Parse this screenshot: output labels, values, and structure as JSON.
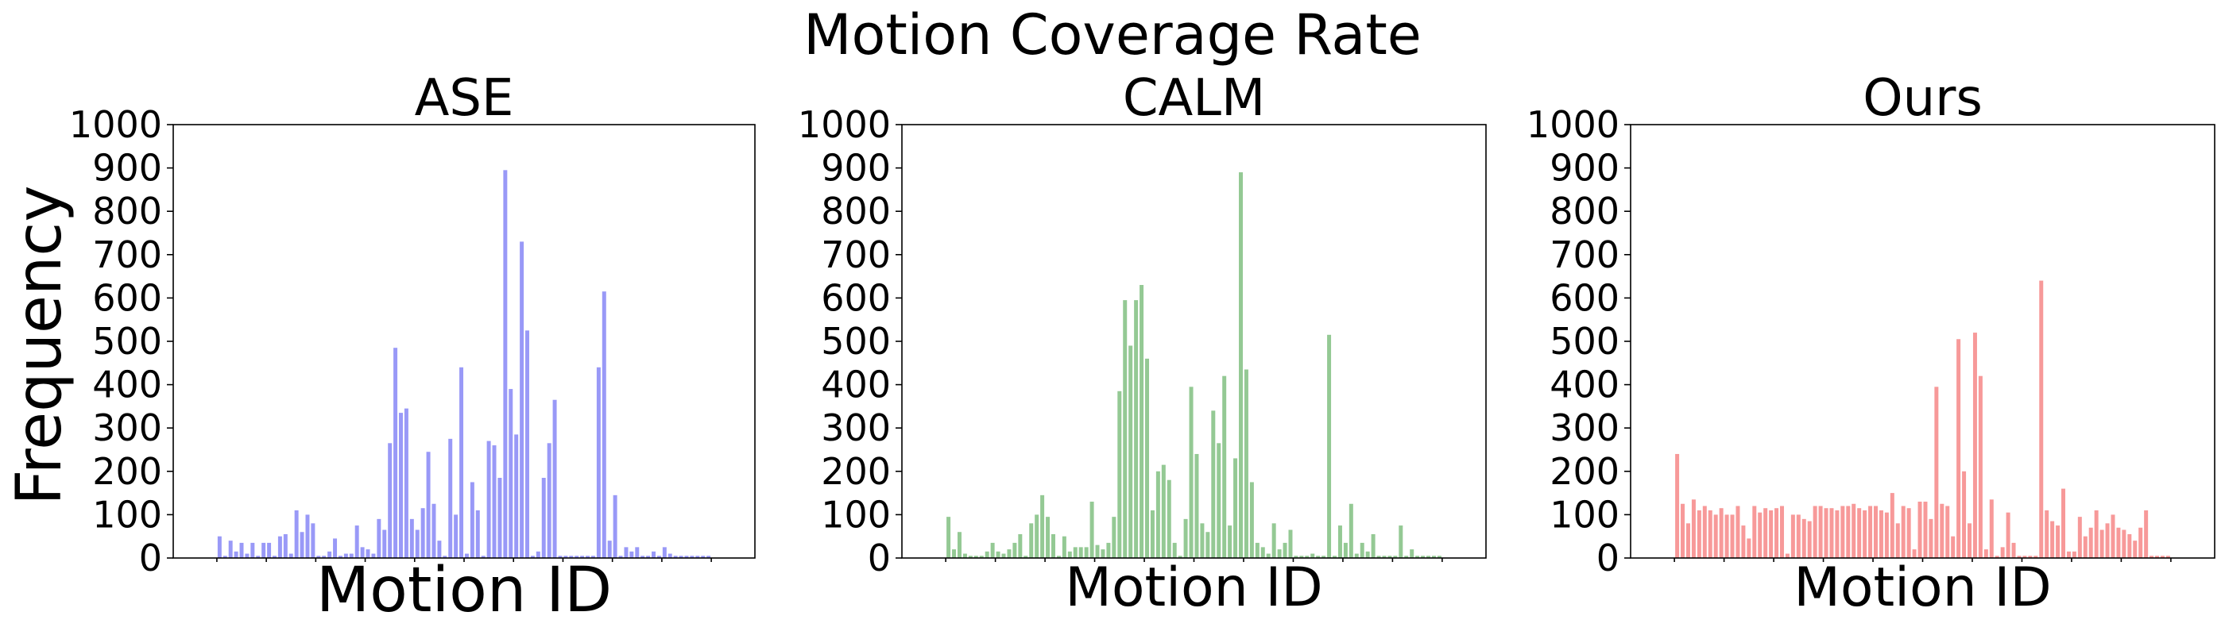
{
  "suptitle": "Motion Coverage Rate",
  "ylabel": "Frequency",
  "chart_data": [
    {
      "type": "bar",
      "title": "ASE",
      "xlabel": "Motion ID",
      "ylabel": "Frequency",
      "ylim": [
        0,
        1000
      ],
      "yticks": [
        0,
        100,
        200,
        300,
        400,
        500,
        600,
        700,
        800,
        900,
        1000
      ],
      "color": "#9999f7",
      "values": [
        50,
        5,
        40,
        15,
        35,
        10,
        35,
        5,
        35,
        35,
        5,
        50,
        55,
        10,
        110,
        60,
        100,
        80,
        5,
        5,
        15,
        45,
        5,
        10,
        10,
        75,
        25,
        20,
        10,
        90,
        65,
        265,
        485,
        335,
        345,
        90,
        65,
        115,
        245,
        125,
        40,
        5,
        275,
        100,
        440,
        10,
        175,
        110,
        5,
        270,
        260,
        185,
        895,
        390,
        285,
        730,
        525,
        5,
        15,
        185,
        265,
        365,
        5,
        5,
        5,
        5,
        5,
        5,
        5,
        440,
        615,
        40,
        145,
        5,
        25,
        15,
        25,
        5,
        5,
        15,
        5,
        25,
        10,
        5,
        5,
        5,
        5,
        5,
        5,
        5
      ]
    },
    {
      "type": "bar",
      "title": "CALM",
      "xlabel": "Motion ID",
      "ylabel": "",
      "ylim": [
        0,
        1000
      ],
      "yticks": [
        0,
        100,
        200,
        300,
        400,
        500,
        600,
        700,
        800,
        900,
        1000
      ],
      "color": "#94c994",
      "values": [
        95,
        20,
        60,
        10,
        5,
        5,
        5,
        15,
        35,
        15,
        10,
        20,
        35,
        55,
        5,
        80,
        100,
        145,
        95,
        55,
        5,
        50,
        15,
        25,
        25,
        25,
        130,
        30,
        20,
        35,
        95,
        385,
        595,
        490,
        595,
        630,
        460,
        110,
        200,
        215,
        180,
        35,
        5,
        90,
        395,
        240,
        80,
        60,
        340,
        265,
        420,
        75,
        230,
        890,
        435,
        175,
        35,
        25,
        10,
        80,
        20,
        35,
        65,
        5,
        5,
        5,
        10,
        5,
        5,
        515,
        5,
        75,
        35,
        125,
        10,
        35,
        15,
        55,
        5,
        5,
        5,
        5,
        75,
        5,
        20,
        5,
        5,
        5,
        5,
        5
      ]
    },
    {
      "type": "bar",
      "title": "Ours",
      "xlabel": "Motion ID",
      "ylabel": "",
      "ylim": [
        0,
        1000
      ],
      "yticks": [
        0,
        100,
        200,
        300,
        400,
        500,
        600,
        700,
        800,
        900,
        1000
      ],
      "color": "#f79999",
      "values": [
        240,
        125,
        80,
        135,
        110,
        120,
        110,
        100,
        115,
        100,
        100,
        120,
        75,
        45,
        120,
        105,
        115,
        110,
        115,
        120,
        10,
        100,
        100,
        90,
        85,
        120,
        120,
        115,
        115,
        110,
        120,
        120,
        125,
        115,
        110,
        120,
        120,
        110,
        105,
        150,
        80,
        120,
        115,
        20,
        130,
        130,
        90,
        395,
        125,
        120,
        50,
        505,
        200,
        80,
        520,
        420,
        20,
        135,
        5,
        25,
        105,
        35,
        5,
        5,
        5,
        5,
        640,
        110,
        85,
        75,
        160,
        15,
        15,
        95,
        50,
        70,
        110,
        65,
        80,
        100,
        70,
        65,
        55,
        40,
        70,
        110,
        5,
        5,
        5,
        5
      ]
    }
  ]
}
